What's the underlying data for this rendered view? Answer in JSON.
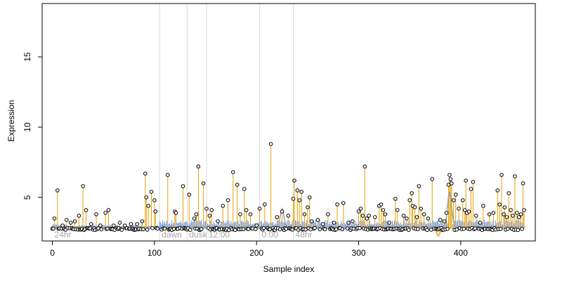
{
  "chart_data": {
    "type": "scatter",
    "title": "",
    "xlabel": "Sample index",
    "ylabel": "Expression",
    "xlim": [
      -10,
      473
    ],
    "ylim": [
      1.9,
      18.8
    ],
    "x_ticks": [
      0,
      100,
      200,
      300,
      400
    ],
    "y_ticks": [
      5,
      10,
      15
    ],
    "baseline": 2.75,
    "colors": {
      "stem_high": "#e69f00",
      "stem_low": "#6495ed",
      "smooth_line": "#a0a0a0",
      "smooth_low": "#e69f00",
      "points": "#000000",
      "separators": "#d9d9d9"
    },
    "regions": [
      {
        "label": "24hr",
        "start": 0
      },
      {
        "label": "dawn",
        "start": 105
      },
      {
        "label": "dusk",
        "start": 132
      },
      {
        "label": "12:00",
        "start": 151
      },
      {
        "label": "0:00",
        "start": 203
      },
      {
        "label": "48hr",
        "start": 236
      }
    ],
    "highlights": [
      {
        "x": 2,
        "y": 3.5
      },
      {
        "x": 5,
        "y": 5.5
      },
      {
        "x": 10,
        "y": 3.0
      },
      {
        "x": 14,
        "y": 3.4
      },
      {
        "x": 18,
        "y": 3.2
      },
      {
        "x": 22,
        "y": 3.3
      },
      {
        "x": 26,
        "y": 3.7
      },
      {
        "x": 30,
        "y": 5.8
      },
      {
        "x": 33,
        "y": 4.1
      },
      {
        "x": 38,
        "y": 3.1
      },
      {
        "x": 43,
        "y": 3.8
      },
      {
        "x": 47,
        "y": 3.0
      },
      {
        "x": 52,
        "y": 3.9
      },
      {
        "x": 55,
        "y": 4.1
      },
      {
        "x": 60,
        "y": 3.0
      },
      {
        "x": 66,
        "y": 3.2
      },
      {
        "x": 71,
        "y": 3.0
      },
      {
        "x": 77,
        "y": 3.1
      },
      {
        "x": 83,
        "y": 3.1
      },
      {
        "x": 88,
        "y": 3.3
      },
      {
        "x": 91,
        "y": 6.7
      },
      {
        "x": 92,
        "y": 5.0
      },
      {
        "x": 94,
        "y": 4.4
      },
      {
        "x": 97,
        "y": 5.4
      },
      {
        "x": 100,
        "y": 4.8
      },
      {
        "x": 101,
        "y": 4.0
      },
      {
        "x": 113,
        "y": 6.6
      },
      {
        "x": 120,
        "y": 4.0
      },
      {
        "x": 121,
        "y": 3.9
      },
      {
        "x": 128,
        "y": 5.8
      },
      {
        "x": 134,
        "y": 5.2
      },
      {
        "x": 139,
        "y": 3.5
      },
      {
        "x": 141,
        "y": 3.8
      },
      {
        "x": 143,
        "y": 7.2
      },
      {
        "x": 148,
        "y": 6.0
      },
      {
        "x": 151,
        "y": 4.2
      },
      {
        "x": 154,
        "y": 3.7
      },
      {
        "x": 156,
        "y": 4.1
      },
      {
        "x": 162,
        "y": 3.3
      },
      {
        "x": 167,
        "y": 4.4
      },
      {
        "x": 172,
        "y": 4.8
      },
      {
        "x": 177,
        "y": 6.8
      },
      {
        "x": 181,
        "y": 5.9
      },
      {
        "x": 184,
        "y": 3.8
      },
      {
        "x": 188,
        "y": 5.6
      },
      {
        "x": 190,
        "y": 4.1
      },
      {
        "x": 194,
        "y": 3.8
      },
      {
        "x": 200,
        "y": 3.0
      },
      {
        "x": 203,
        "y": 4.2
      },
      {
        "x": 208,
        "y": 4.5
      },
      {
        "x": 214,
        "y": 8.8
      },
      {
        "x": 220,
        "y": 3.6
      },
      {
        "x": 225,
        "y": 4.0
      },
      {
        "x": 231,
        "y": 3.7
      },
      {
        "x": 236,
        "y": 4.9
      },
      {
        "x": 237,
        "y": 6.2
      },
      {
        "x": 240,
        "y": 5.5
      },
      {
        "x": 242,
        "y": 4.8
      },
      {
        "x": 244,
        "y": 5.4
      },
      {
        "x": 247,
        "y": 3.8
      },
      {
        "x": 250,
        "y": 4.3
      },
      {
        "x": 252,
        "y": 5.0
      },
      {
        "x": 254,
        "y": 3.3
      },
      {
        "x": 260,
        "y": 3.4
      },
      {
        "x": 265,
        "y": 3.1
      },
      {
        "x": 270,
        "y": 3.8
      },
      {
        "x": 276,
        "y": 3.2
      },
      {
        "x": 279,
        "y": 4.5
      },
      {
        "x": 285,
        "y": 4.6
      },
      {
        "x": 290,
        "y": 3.2
      },
      {
        "x": 294,
        "y": 3.3
      },
      {
        "x": 300,
        "y": 4.0
      },
      {
        "x": 302,
        "y": 4.2
      },
      {
        "x": 304,
        "y": 3.7
      },
      {
        "x": 306,
        "y": 7.2
      },
      {
        "x": 308,
        "y": 3.5
      },
      {
        "x": 310,
        "y": 3.7
      },
      {
        "x": 316,
        "y": 3.6
      },
      {
        "x": 320,
        "y": 4.4
      },
      {
        "x": 322,
        "y": 4.5
      },
      {
        "x": 324,
        "y": 4.1
      },
      {
        "x": 326,
        "y": 3.8
      },
      {
        "x": 330,
        "y": 3.2
      },
      {
        "x": 336,
        "y": 4.9
      },
      {
        "x": 338,
        "y": 4.1
      },
      {
        "x": 344,
        "y": 3.7
      },
      {
        "x": 347,
        "y": 3.5
      },
      {
        "x": 350,
        "y": 4.8
      },
      {
        "x": 352,
        "y": 5.3
      },
      {
        "x": 353,
        "y": 4.4
      },
      {
        "x": 355,
        "y": 4.3
      },
      {
        "x": 357,
        "y": 3.6
      },
      {
        "x": 359,
        "y": 5.8
      },
      {
        "x": 361,
        "y": 4.2
      },
      {
        "x": 364,
        "y": 3.8
      },
      {
        "x": 368,
        "y": 3.5
      },
      {
        "x": 372,
        "y": 6.3
      },
      {
        "x": 380,
        "y": 3.4
      },
      {
        "x": 384,
        "y": 3.3
      },
      {
        "x": 386,
        "y": 3.9
      },
      {
        "x": 388,
        "y": 5.9
      },
      {
        "x": 389,
        "y": 6.6
      },
      {
        "x": 390,
        "y": 6.3
      },
      {
        "x": 391,
        "y": 6.0
      },
      {
        "x": 393,
        "y": 4.8
      },
      {
        "x": 395,
        "y": 5.2
      },
      {
        "x": 398,
        "y": 4.2
      },
      {
        "x": 402,
        "y": 4.8
      },
      {
        "x": 404,
        "y": 4.1
      },
      {
        "x": 405,
        "y": 6.2
      },
      {
        "x": 406,
        "y": 3.9
      },
      {
        "x": 408,
        "y": 4.0
      },
      {
        "x": 410,
        "y": 5.6
      },
      {
        "x": 412,
        "y": 6.1
      },
      {
        "x": 415,
        "y": 3.7
      },
      {
        "x": 419,
        "y": 3.2
      },
      {
        "x": 422,
        "y": 4.4
      },
      {
        "x": 428,
        "y": 3.8
      },
      {
        "x": 432,
        "y": 3.9
      },
      {
        "x": 436,
        "y": 5.5
      },
      {
        "x": 438,
        "y": 4.5
      },
      {
        "x": 440,
        "y": 6.6
      },
      {
        "x": 442,
        "y": 3.8
      },
      {
        "x": 443,
        "y": 4.3
      },
      {
        "x": 445,
        "y": 3.6
      },
      {
        "x": 447,
        "y": 5.3
      },
      {
        "x": 449,
        "y": 4.1
      },
      {
        "x": 451,
        "y": 3.7
      },
      {
        "x": 453,
        "y": 6.5
      },
      {
        "x": 455,
        "y": 3.9
      },
      {
        "x": 457,
        "y": 3.6
      },
      {
        "x": 459,
        "y": 3.8
      },
      {
        "x": 461,
        "y": 6.0
      },
      {
        "x": 462,
        "y": 4.1
      }
    ]
  }
}
